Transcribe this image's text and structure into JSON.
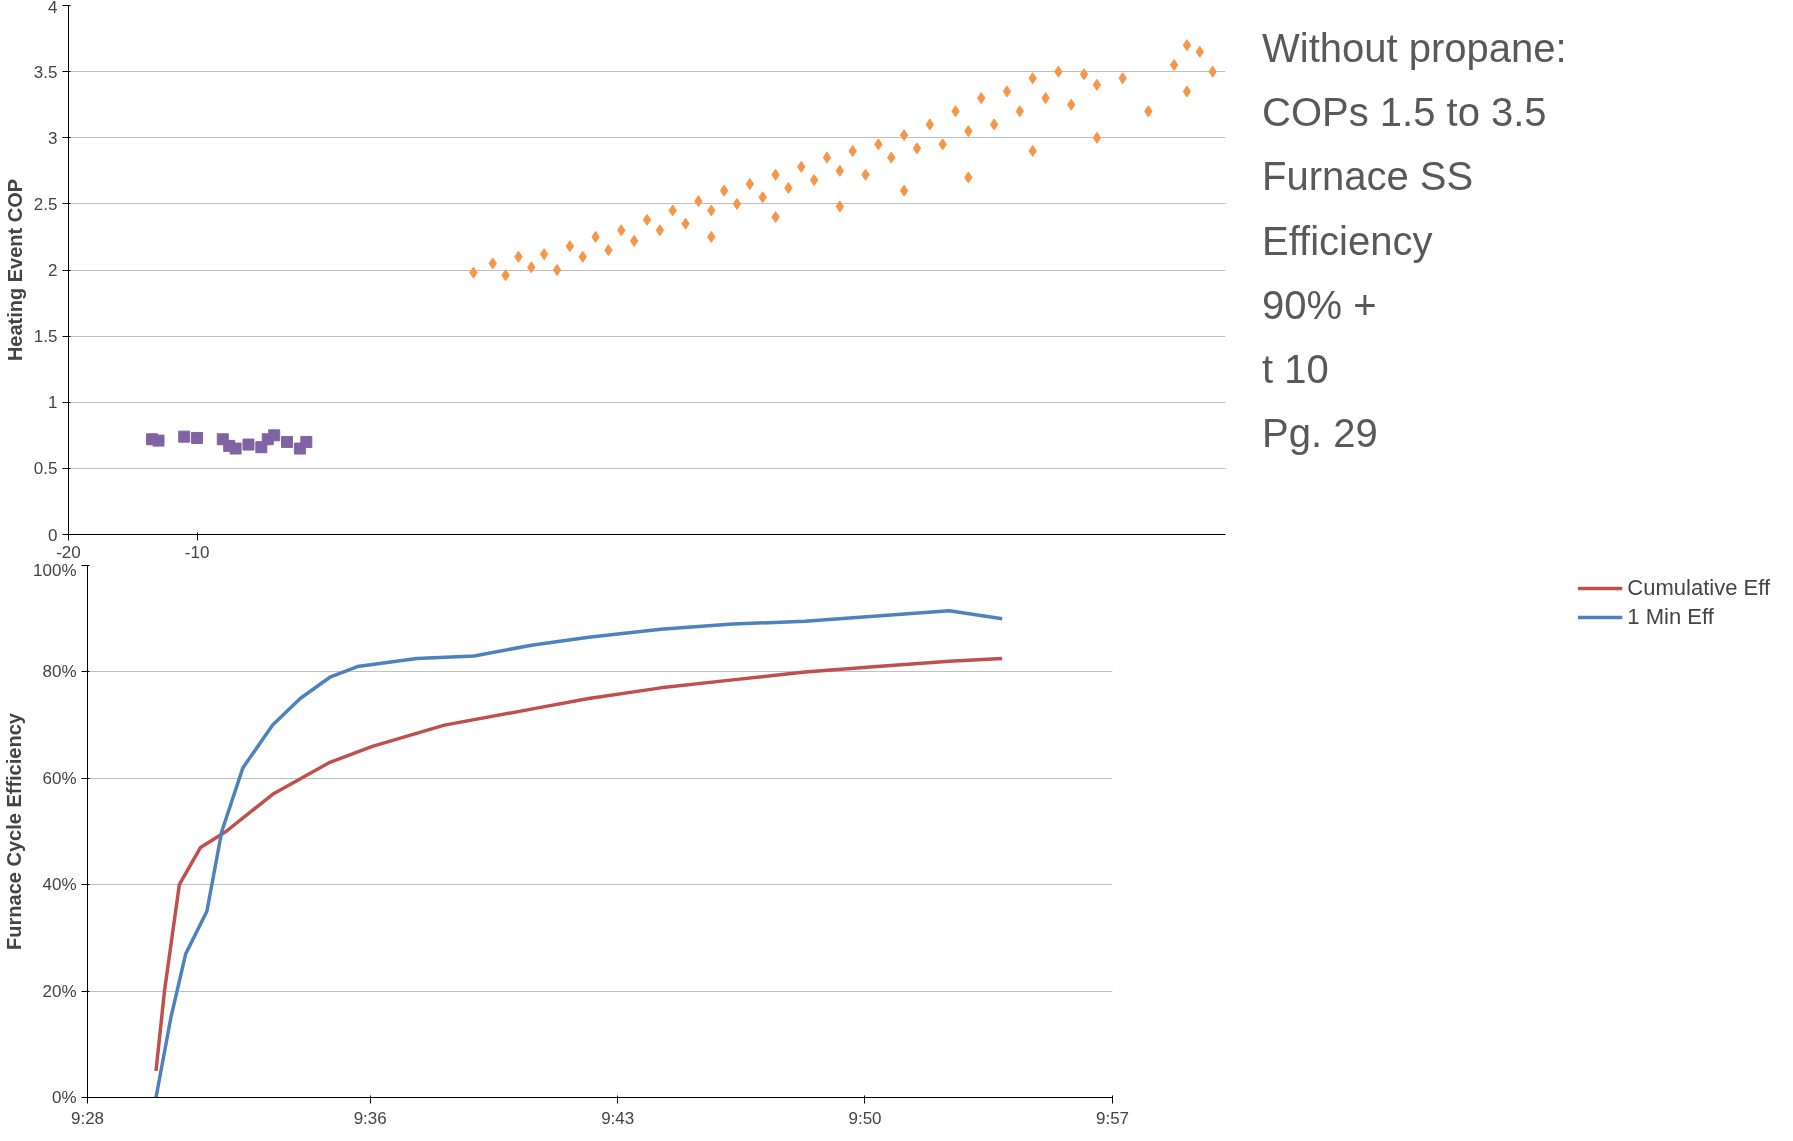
{
  "chart_data": [
    {
      "type": "scatter",
      "ylabel": "Heating Event COP",
      "xlim": [
        -20,
        70
      ],
      "xticks": [
        -20,
        -10
      ],
      "ylim": [
        0,
        4
      ],
      "yticks": [
        0,
        0.5,
        1,
        1.5,
        2,
        2.5,
        3,
        3.5,
        4
      ],
      "grid": "y",
      "legend": false,
      "series": [
        {
          "color": "#f79646",
          "marker": "diamond",
          "x": [
            11.5,
            13,
            14,
            15,
            16,
            17,
            18,
            19,
            20,
            21,
            22,
            23,
            24,
            25,
            26,
            27,
            28,
            29,
            30,
            31,
            32,
            33,
            34,
            35,
            36,
            37,
            38,
            39,
            40,
            41,
            42,
            43,
            44,
            45,
            46,
            47,
            48,
            49,
            50,
            51,
            52,
            53,
            54,
            55,
            56,
            57,
            58,
            59,
            60,
            62,
            64,
            66,
            67,
            68,
            69,
            67,
            30,
            35,
            40,
            45,
            50,
            55,
            60
          ],
          "values": [
            1.98,
            2.05,
            1.96,
            2.1,
            2.02,
            2.12,
            2.0,
            2.18,
            2.1,
            2.25,
            2.15,
            2.3,
            2.22,
            2.38,
            2.3,
            2.45,
            2.35,
            2.52,
            2.45,
            2.6,
            2.5,
            2.65,
            2.55,
            2.72,
            2.62,
            2.78,
            2.68,
            2.85,
            2.75,
            2.9,
            2.72,
            2.95,
            2.85,
            3.02,
            2.92,
            3.1,
            2.95,
            3.2,
            3.05,
            3.3,
            3.1,
            3.35,
            3.2,
            3.45,
            3.3,
            3.5,
            3.25,
            3.48,
            3.4,
            3.45,
            3.2,
            3.55,
            3.7,
            3.65,
            3.5,
            3.35,
            2.25,
            2.4,
            2.48,
            2.6,
            2.7,
            2.9,
            3.0
          ]
        },
        {
          "color": "#8064a2",
          "marker": "square",
          "x": [
            -13.5,
            -13,
            -11,
            -10,
            -8,
            -7.5,
            -7,
            -6,
            -5,
            -4.5,
            -4,
            -3,
            -2,
            -1.5
          ],
          "values": [
            0.72,
            0.71,
            0.74,
            0.73,
            0.72,
            0.67,
            0.65,
            0.68,
            0.66,
            0.72,
            0.75,
            0.7,
            0.65,
            0.7
          ]
        }
      ]
    },
    {
      "type": "other",
      "annotations": [
        "Without propane:",
        "COPs 1.5 to 3.5",
        "Furnace SS",
        "Efficiency",
        "90% +",
        "t 10",
        "Pg. 29"
      ]
    },
    {
      "type": "line",
      "ylabel": "Furnace Cycle Efficiency",
      "xlim": [
        9.4667,
        9.95
      ],
      "xticks": [
        {
          "value": 9.4667,
          "label": "9:28"
        },
        {
          "value": 9.6,
          "label": "9:36"
        },
        {
          "value": 9.7167,
          "label": "9:43"
        },
        {
          "value": 9.8333,
          "label": "9:50"
        },
        {
          "value": 9.95,
          "label": "9:57"
        }
      ],
      "ylim": [
        0,
        100
      ],
      "yticks": [
        {
          "value": 0,
          "label": "0%"
        },
        {
          "value": 20,
          "label": "20%"
        },
        {
          "value": 40,
          "label": "40%"
        },
        {
          "value": 60,
          "label": "60%"
        },
        {
          "value": 80,
          "label": "80%"
        },
        {
          "value": 100,
          "label": "100%"
        }
      ],
      "grid": "y",
      "legend": "right",
      "line_style": "solid",
      "series": [
        {
          "name": "Cumulative Eff",
          "color": "#c0504d",
          "x": [
            9.499,
            9.503,
            9.51,
            9.52,
            9.532,
            9.554,
            9.581,
            9.601,
            9.635,
            9.676,
            9.703,
            9.737,
            9.771,
            9.805,
            9.839,
            9.873,
            9.898
          ],
          "values": [
            5,
            20,
            40,
            47,
            50,
            57,
            63,
            66,
            70,
            73,
            75,
            77,
            78.5,
            80,
            81,
            82,
            82.5
          ]
        },
        {
          "name": "1 Min Eff",
          "color": "#4f81bd",
          "x": [
            9.499,
            9.506,
            9.513,
            9.523,
            9.53,
            9.54,
            9.554,
            9.567,
            9.581,
            9.594,
            9.622,
            9.649,
            9.676,
            9.703,
            9.737,
            9.771,
            9.805,
            9.839,
            9.873,
            9.898
          ],
          "values": [
            0,
            15,
            27,
            35,
            50,
            62,
            70,
            75,
            79,
            81,
            82.5,
            83,
            85,
            86.5,
            88,
            89,
            89.5,
            90.5,
            91.5,
            90
          ]
        }
      ]
    }
  ]
}
